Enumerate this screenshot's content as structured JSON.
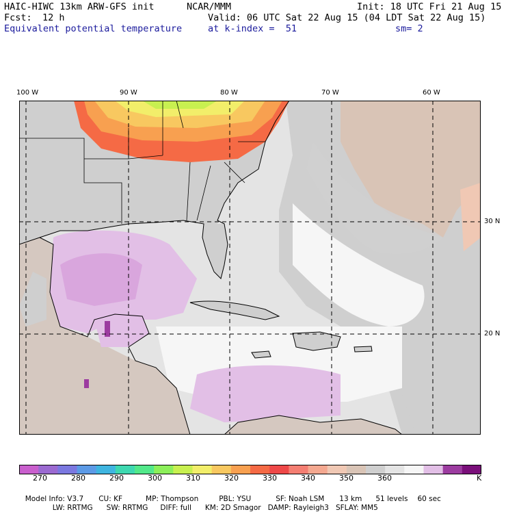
{
  "header": {
    "title": "HAIC-HIWC 13km ARW-GFS init",
    "org": "NCAR/MMM",
    "init": "Init: 18 UTC Fri 21 Aug 15",
    "fcst_label": "Fcst:",
    "fcst_value": "12 h",
    "valid": "Valid: 06 UTC Sat 22 Aug 15 (04 LDT Sat 22 Aug 15)",
    "field": "Equivalent potential temperature",
    "level": "at k-index =  51",
    "smooth": "sm= 2"
  },
  "map": {
    "lon_labels": [
      "100 W",
      "90 W",
      "80 W",
      "70 W",
      "60 W"
    ],
    "lat_labels": [
      "30 N",
      "20 N"
    ]
  },
  "colorbar": {
    "colors": [
      "#c95fcd",
      "#9b6ad1",
      "#7b78e0",
      "#5c9ae6",
      "#3fb5e0",
      "#3ed8b0",
      "#52e88a",
      "#8cef5a",
      "#c8f050",
      "#f2ee6a",
      "#f8c860",
      "#f8a050",
      "#f56a45",
      "#ee4848",
      "#f47e72",
      "#f4a890",
      "#f0c8b4",
      "#d9c4b6",
      "#cfcfcf",
      "#e4e4e4",
      "#f6f6f6",
      "#e2bfe6",
      "#9c3ca0",
      "#7a0f7a"
    ],
    "tick_labels": [
      "270",
      "280",
      "290",
      "300",
      "310",
      "320",
      "330",
      "340",
      "350",
      "360",
      "K"
    ]
  },
  "footer": {
    "line1": [
      "Model Info: V3.7",
      "CU: KF",
      "MP: Thompson",
      "PBL: YSU",
      "SF: Noah LSM",
      "13 km",
      "51 levels",
      "60 sec"
    ],
    "line2": [
      "LW: RRTMG",
      "SW: RRTMG",
      "DIFF: full",
      "KM: 2D Smagor",
      "DAMP: Rayleigh3",
      "SFLAY: MM5"
    ]
  }
}
